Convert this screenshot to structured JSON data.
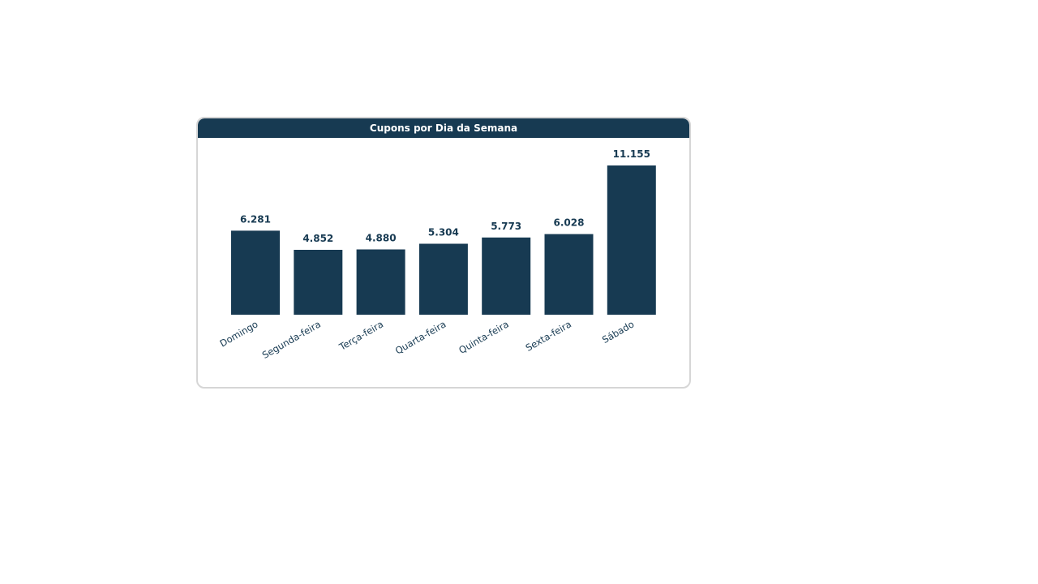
{
  "chart_data": {
    "type": "bar",
    "title": "Cupons por Dia da Semana",
    "categories": [
      "Domingo",
      "Segunda-feira",
      "Terça-feira",
      "Quarta-feira",
      "Quinta-feira",
      "Sexta-feira",
      "Sábado"
    ],
    "values": [
      6281,
      4852,
      4880,
      5304,
      5773,
      6028,
      11155
    ],
    "value_labels": [
      "6.281",
      "4.852",
      "4.880",
      "5.304",
      "5.773",
      "6.028",
      "11.155"
    ],
    "xlabel": "",
    "ylabel": "",
    "ylim": [
      0,
      11155
    ],
    "grid": false,
    "legend": "none",
    "bar_color": "#173a52",
    "header_color": "#173a52"
  }
}
